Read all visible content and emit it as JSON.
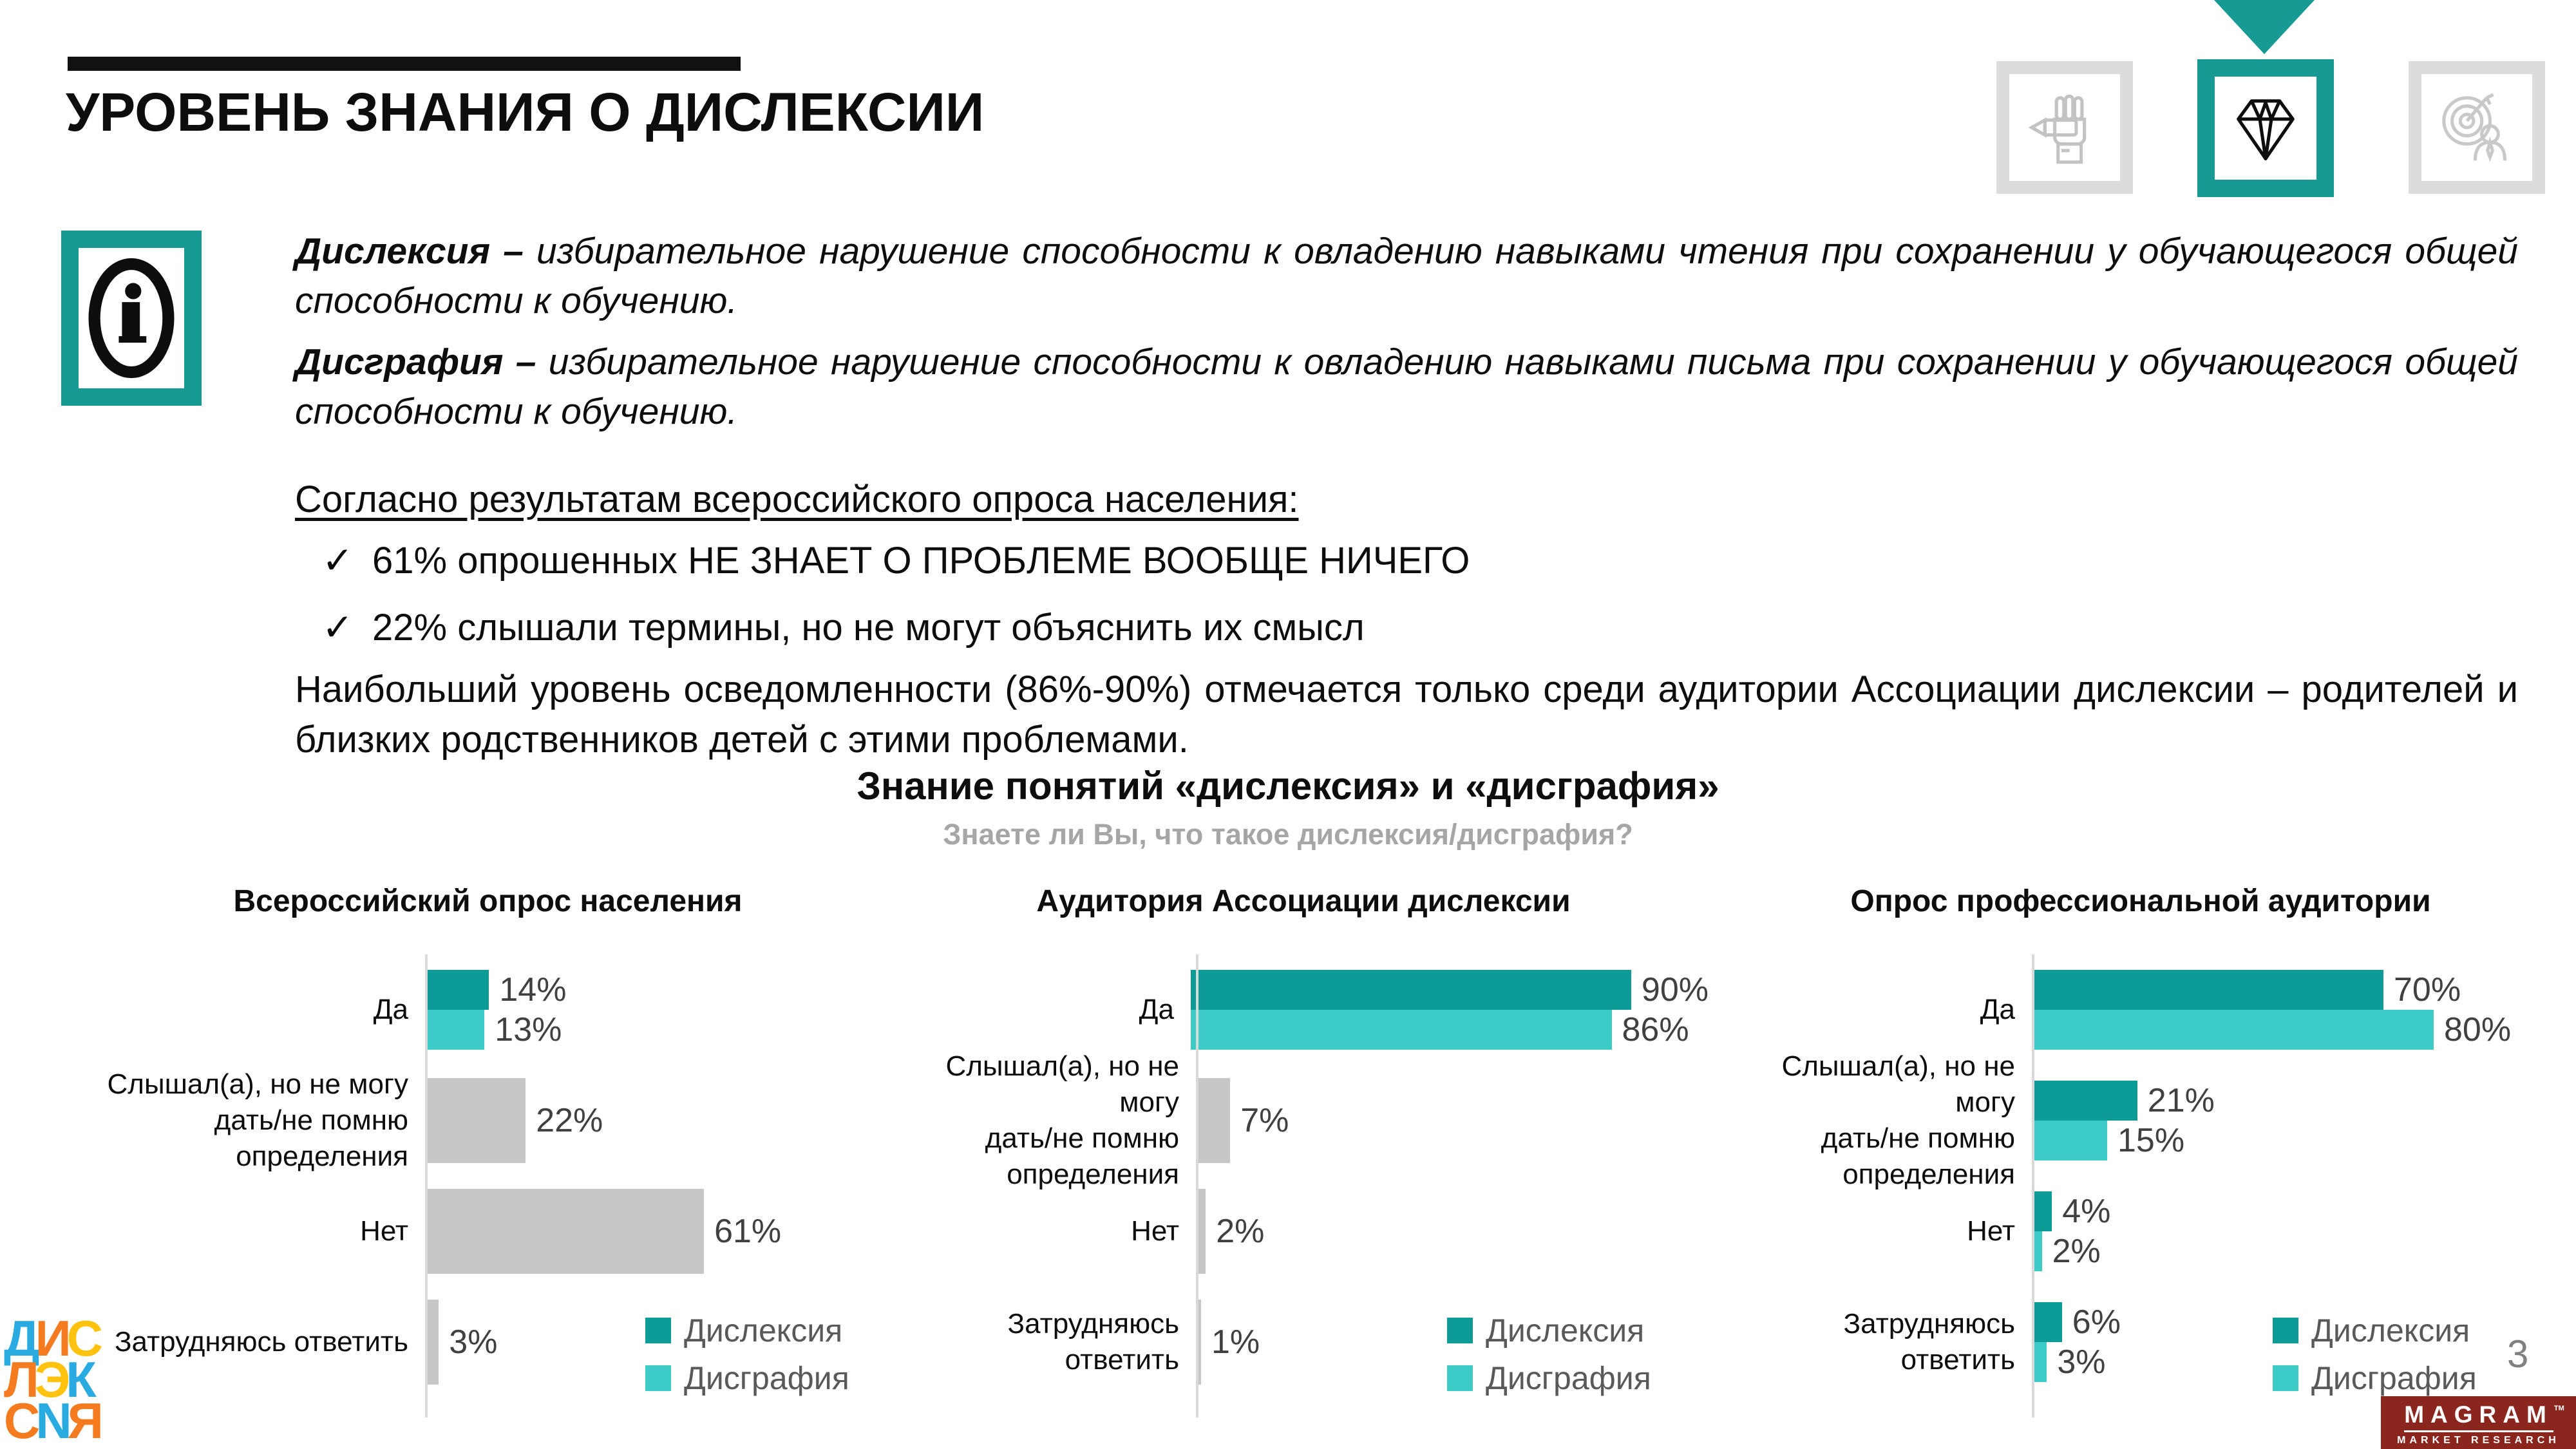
{
  "header": {
    "title": "УРОВЕНЬ ЗНАНИЯ О ДИСЛЕКСИИ",
    "nav_icons": [
      {
        "name": "writing-hand",
        "active": false
      },
      {
        "name": "diamond",
        "active": true
      },
      {
        "name": "target-audience",
        "active": false
      }
    ]
  },
  "info_block": {
    "definitions": [
      {
        "term": "Дислексия",
        "separator": " – ",
        "text": "избирательное нарушение способности к овладению навыками чтения при сохранении у обучающегося общей способности к обучению."
      },
      {
        "term": "Дисграфия",
        "separator": " – ",
        "text": "избирательное нарушение способности к овладению навыками письма при сохранении у обучающегося общей способности к обучению."
      }
    ]
  },
  "survey_results": {
    "heading": "Согласно результатам всероссийского опроса населения:",
    "bullet_marker": "✓",
    "bullets": [
      "61% опрошенных НЕ ЗНАЕТ О ПРОБЛЕМЕ ВООБЩЕ НИЧЕГО",
      "22% слышали термины, но не могут объяснить их смысл"
    ],
    "note": "Наибольший уровень осведомленности (86%-90%) отмечается только среди аудитории Ассоциации дислексии – родителей и близких родственников детей с этими проблемами."
  },
  "charts_section": {
    "title": "Знание понятий «дислексия» и «дисграфия»",
    "subtitle": "Знаете ли Вы, что такое дислексия/дисграфия?"
  },
  "chart_data": [
    {
      "type": "bar",
      "orientation": "horizontal",
      "title": "Всероссийский опрос населения",
      "categories": [
        "Да",
        "Слышал(а), но не могу\nдать/не помню определения",
        "Нет",
        "Затрудняюсь ответить"
      ],
      "series": [
        {
          "name": "Дислексия",
          "color": "#0D9B98",
          "values": [
            14,
            22,
            61,
            3
          ]
        },
        {
          "name": "Дисграфия",
          "color": "#3DCBC8",
          "values": [
            13,
            22,
            61,
            3
          ]
        }
      ],
      "single_gray_bar_rows": [
        1,
        2,
        3
      ],
      "gray_color": "#C7C7C7",
      "value_suffix": "%",
      "xlim": [
        0,
        100
      ],
      "legend_position": "bottom-right"
    },
    {
      "type": "bar",
      "orientation": "horizontal",
      "title": "Аудитория Ассоциации дислексии",
      "categories": [
        "Да",
        "Слышал(а), но не могу\nдать/не помню\nопределения",
        "Нет",
        "Затрудняюсь ответить"
      ],
      "series": [
        {
          "name": "Дислексия",
          "color": "#0D9B98",
          "values": [
            90,
            7,
            2,
            1
          ]
        },
        {
          "name": "Дисграфия",
          "color": "#3DCBC8",
          "values": [
            86,
            7,
            2,
            1
          ]
        }
      ],
      "single_gray_bar_rows": [
        1,
        2,
        3
      ],
      "gray_color": "#C7C7C7",
      "value_suffix": "%",
      "xlim": [
        0,
        100
      ],
      "legend_position": "bottom-right"
    },
    {
      "type": "bar",
      "orientation": "horizontal",
      "title": "Опрос профессиональной аудитории",
      "categories": [
        "Да",
        "Слышал(а), но не могу\nдать/не помню\nопределения",
        "Нет",
        "Затрудняюсь ответить"
      ],
      "series": [
        {
          "name": "Дислексия",
          "color": "#0D9B98",
          "values": [
            70,
            21,
            4,
            6
          ]
        },
        {
          "name": "Дисграфия",
          "color": "#3DCBC8",
          "values": [
            80,
            15,
            2,
            3
          ]
        }
      ],
      "single_gray_bar_rows": [],
      "gray_color": "#C7C7C7",
      "value_suffix": "%",
      "xlim": [
        0,
        100
      ],
      "legend_position": "bottom-right"
    }
  ],
  "legend": {
    "items": [
      {
        "label": "Дислексия",
        "color": "#0D9B98"
      },
      {
        "label": "Дисграфия",
        "color": "#3DCBC8"
      }
    ]
  },
  "footer": {
    "page_number": "3",
    "magram_logo": {
      "name": "MAGRAM",
      "tm": "TM",
      "subtitle": "MARKET RESEARCH",
      "background": "#8B261F"
    },
    "dyslexia_logo_rows": [
      [
        {
          "ch": "Д",
          "color": "#29ABE2"
        },
        {
          "ch": "И",
          "color": "#F47B20"
        },
        {
          "ch": "С",
          "color": "#FFC20E"
        }
      ],
      [
        {
          "ch": "Л",
          "color": "#F47B20"
        },
        {
          "ch": "Э",
          "color": "#FFC20E"
        },
        {
          "ch": "К",
          "color": "#29ABE2"
        }
      ],
      [
        {
          "ch": "С",
          "color": "#F47B20"
        },
        {
          "ch": "N",
          "color": "#29ABE2"
        },
        {
          "ch": "Я",
          "color": "#F47B20"
        }
      ]
    ]
  },
  "colors": {
    "accent_teal": "#189A94",
    "bar_dyslexia": "#0D9B98",
    "bar_dysgraphia": "#3DCBC8",
    "bar_gray": "#C7C7C7",
    "subtitle_gray": "#A6A6A6",
    "value_text": "#404040"
  }
}
